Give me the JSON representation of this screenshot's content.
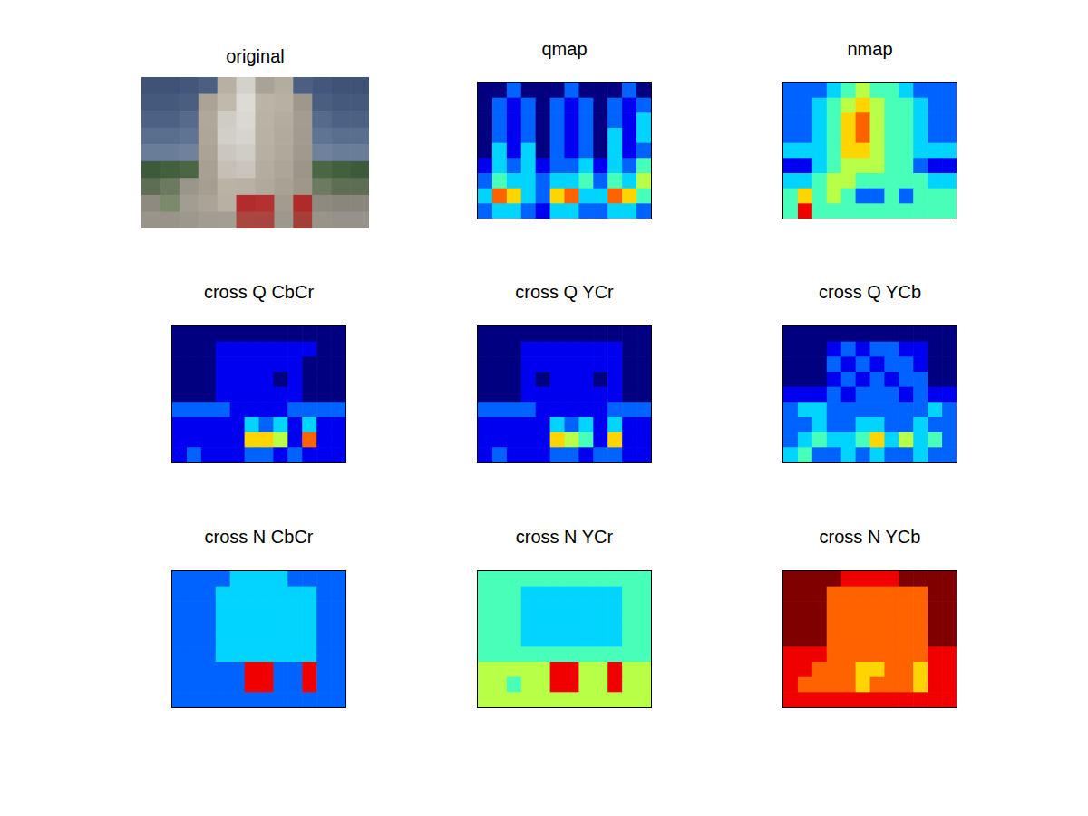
{
  "chart_data": [
    {
      "type": "image",
      "title": "original",
      "colors": [
        [
          "#3e5377",
          "#3e5377",
          "#42577b",
          "#4a5f82",
          "#b8b1a3",
          "#d4d1ca",
          "#a9a397",
          "#b3ad9f",
          "#4a5f82",
          "#42577b",
          "#3e5377",
          "#3e5377"
        ],
        [
          "#45597c",
          "#45597c",
          "#4a5e80",
          "#aba496",
          "#c0baad",
          "#dddbd5",
          "#bab4a6",
          "#b7b1a3",
          "#9e988c",
          "#4a5e80",
          "#45597c",
          "#45597c"
        ],
        [
          "#4d6184",
          "#4d6184",
          "#566a8c",
          "#b0a99b",
          "#cfccc4",
          "#dad8d1",
          "#b9b3a5",
          "#b3ad9f",
          "#a39d91",
          "#566a8c",
          "#4d6184",
          "#4d6184"
        ],
        [
          "#5a6e8f",
          "#5a6e8f",
          "#5f7392",
          "#aea799",
          "#d2cfc7",
          "#d7d4cd",
          "#b8b2a4",
          "#b1ab9d",
          "#a29c90",
          "#5f7392",
          "#5a6e8f",
          "#5a6e8f"
        ],
        [
          "#6a7d98",
          "#6a7d98",
          "#6f819b",
          "#aba496",
          "#cbc7be",
          "#d0cdc5",
          "#b6b0a2",
          "#afa99b",
          "#a09a8e",
          "#6f819b",
          "#6a7d98",
          "#6a7d98"
        ],
        [
          "#3d5a3a",
          "#42603e",
          "#4a6642",
          "#a8a193",
          "#c4c0b6",
          "#c9c5bc",
          "#b3ad9f",
          "#aca698",
          "#9c968a",
          "#4a6642",
          "#42603e",
          "#3d5a3a"
        ],
        [
          "#5e6e55",
          "#6b7a60",
          "#9b968c",
          "#a59f92",
          "#b9b3a6",
          "#b8b2a5",
          "#b0aa9c",
          "#a8a295",
          "#9e988b",
          "#6b7a60",
          "#5e6e55",
          "#5e6e55"
        ],
        [
          "#8f8a80",
          "#7a8a6a",
          "#a29d93",
          "#aaa498",
          "#b7b1a4",
          "#b32b2b",
          "#b53030",
          "#a29c90",
          "#b12a2a",
          "#8f8a80",
          "#8b867c",
          "#8b867c"
        ],
        [
          "#99948a",
          "#99948a",
          "#9d988e",
          "#a29d93",
          "#a39e94",
          "#a8463f",
          "#a9453e",
          "#9e998f",
          "#a24038",
          "#99948a",
          "#96918a",
          "#96918a"
        ]
      ],
      "tick_labels": false
    },
    {
      "type": "heatmap",
      "title": "qmap",
      "color_range": [
        0,
        9
      ],
      "tick_labels": false,
      "cells": [
        [
          0,
          0,
          2,
          0,
          0,
          0,
          2,
          0,
          0,
          0,
          2,
          0
        ],
        [
          0,
          2,
          1,
          2,
          0,
          2,
          1,
          2,
          0,
          2,
          1,
          2
        ],
        [
          0,
          2,
          1,
          2,
          0,
          2,
          1,
          2,
          0,
          2,
          1,
          3
        ],
        [
          0,
          2,
          1,
          2,
          0,
          2,
          1,
          2,
          0,
          3,
          1,
          3
        ],
        [
          0,
          3,
          1,
          3,
          0,
          2,
          1,
          2,
          0,
          3,
          1,
          2
        ],
        [
          1,
          3,
          2,
          3,
          1,
          2,
          2,
          3,
          1,
          3,
          2,
          4
        ],
        [
          2,
          4,
          3,
          3,
          2,
          3,
          3,
          4,
          2,
          4,
          3,
          5
        ],
        [
          3,
          7,
          6,
          3,
          2,
          6,
          7,
          3,
          3,
          7,
          6,
          4
        ],
        [
          2,
          3,
          3,
          2,
          1,
          3,
          3,
          2,
          2,
          3,
          3,
          2
        ]
      ]
    },
    {
      "type": "heatmap",
      "title": "nmap",
      "color_range": [
        0,
        9
      ],
      "tick_labels": false,
      "cells": [
        [
          2,
          2,
          2,
          3,
          4,
          5,
          4,
          4,
          3,
          2,
          2,
          2
        ],
        [
          2,
          2,
          3,
          4,
          5,
          6,
          5,
          4,
          4,
          3,
          2,
          2
        ],
        [
          2,
          2,
          3,
          4,
          6,
          7,
          5,
          4,
          4,
          3,
          2,
          2
        ],
        [
          2,
          2,
          3,
          4,
          6,
          7,
          5,
          4,
          4,
          3,
          2,
          2
        ],
        [
          3,
          3,
          3,
          4,
          6,
          6,
          5,
          4,
          4,
          3,
          3,
          3
        ],
        [
          1,
          1,
          3,
          4,
          5,
          5,
          5,
          4,
          4,
          2,
          1,
          1
        ],
        [
          3,
          3,
          4,
          5,
          5,
          4,
          4,
          4,
          4,
          4,
          3,
          3
        ],
        [
          4,
          6,
          4,
          5,
          4,
          2,
          2,
          4,
          2,
          4,
          4,
          4
        ],
        [
          4,
          8,
          4,
          4,
          4,
          4,
          4,
          4,
          4,
          4,
          4,
          4
        ]
      ]
    },
    {
      "type": "heatmap",
      "title": "cross Q CbCr",
      "color_range": [
        0,
        9
      ],
      "tick_labels": false,
      "cells": [
        [
          0,
          0,
          0,
          0,
          0,
          0,
          0,
          0,
          0,
          0,
          0,
          0
        ],
        [
          0,
          0,
          0,
          1,
          1,
          1,
          1,
          1,
          1,
          1,
          0,
          0
        ],
        [
          0,
          0,
          0,
          1,
          1,
          1,
          1,
          1,
          1,
          0,
          0,
          0
        ],
        [
          0,
          0,
          0,
          1,
          1,
          1,
          1,
          0,
          1,
          0,
          0,
          0
        ],
        [
          0,
          0,
          0,
          1,
          1,
          1,
          1,
          1,
          1,
          0,
          0,
          0
        ],
        [
          2,
          2,
          2,
          2,
          1,
          1,
          1,
          1,
          2,
          2,
          2,
          2
        ],
        [
          1,
          1,
          1,
          1,
          1,
          3,
          2,
          3,
          1,
          3,
          1,
          1
        ],
        [
          1,
          1,
          1,
          1,
          1,
          6,
          6,
          5,
          1,
          7,
          1,
          1
        ],
        [
          1,
          2,
          1,
          1,
          1,
          2,
          2,
          1,
          2,
          1,
          1,
          1
        ]
      ]
    },
    {
      "type": "heatmap",
      "title": "cross Q YCr",
      "color_range": [
        0,
        9
      ],
      "tick_labels": false,
      "cells": [
        [
          0,
          0,
          0,
          0,
          0,
          0,
          0,
          0,
          0,
          0,
          0,
          0
        ],
        [
          0,
          0,
          0,
          1,
          1,
          1,
          1,
          1,
          1,
          1,
          0,
          0
        ],
        [
          0,
          0,
          0,
          1,
          1,
          1,
          1,
          1,
          1,
          1,
          0,
          0
        ],
        [
          0,
          0,
          0,
          1,
          0,
          1,
          1,
          1,
          0,
          1,
          0,
          0
        ],
        [
          0,
          0,
          0,
          1,
          1,
          1,
          1,
          1,
          1,
          1,
          0,
          0
        ],
        [
          2,
          2,
          2,
          2,
          1,
          1,
          1,
          1,
          1,
          2,
          2,
          2
        ],
        [
          1,
          1,
          1,
          1,
          1,
          3,
          2,
          3,
          1,
          3,
          1,
          1
        ],
        [
          1,
          1,
          1,
          1,
          1,
          6,
          5,
          4,
          1,
          6,
          1,
          1
        ],
        [
          1,
          2,
          1,
          1,
          1,
          2,
          2,
          1,
          2,
          2,
          1,
          1
        ]
      ]
    },
    {
      "type": "heatmap",
      "title": "cross Q YCb",
      "color_range": [
        0,
        9
      ],
      "tick_labels": false,
      "cells": [
        [
          0,
          0,
          0,
          0,
          0,
          0,
          0,
          0,
          0,
          0,
          0,
          0
        ],
        [
          0,
          0,
          0,
          1,
          2,
          1,
          2,
          2,
          1,
          1,
          0,
          0
        ],
        [
          0,
          0,
          0,
          2,
          1,
          2,
          1,
          2,
          2,
          1,
          0,
          0
        ],
        [
          0,
          0,
          0,
          1,
          2,
          1,
          2,
          1,
          2,
          2,
          0,
          0
        ],
        [
          1,
          1,
          1,
          2,
          1,
          2,
          2,
          2,
          1,
          2,
          1,
          1
        ],
        [
          2,
          3,
          3,
          2,
          2,
          2,
          2,
          2,
          2,
          2,
          3,
          2
        ],
        [
          2,
          2,
          3,
          2,
          2,
          3,
          3,
          2,
          2,
          3,
          2,
          2
        ],
        [
          2,
          3,
          4,
          3,
          3,
          4,
          6,
          3,
          5,
          3,
          4,
          2
        ],
        [
          3,
          4,
          2,
          2,
          3,
          2,
          3,
          2,
          2,
          3,
          2,
          2
        ]
      ]
    },
    {
      "type": "heatmap",
      "title": "cross N CbCr",
      "color_range": [
        0,
        9
      ],
      "tick_labels": false,
      "cells": [
        [
          2,
          2,
          2,
          2,
          3,
          3,
          3,
          3,
          2,
          2,
          2,
          2
        ],
        [
          2,
          2,
          2,
          3,
          3,
          3,
          3,
          3,
          3,
          3,
          2,
          2
        ],
        [
          2,
          2,
          2,
          3,
          3,
          3,
          3,
          3,
          3,
          3,
          2,
          2
        ],
        [
          2,
          2,
          2,
          3,
          3,
          3,
          3,
          3,
          3,
          3,
          2,
          2
        ],
        [
          2,
          2,
          2,
          3,
          3,
          3,
          3,
          3,
          3,
          3,
          2,
          2
        ],
        [
          2,
          2,
          2,
          3,
          3,
          3,
          3,
          3,
          3,
          3,
          2,
          2
        ],
        [
          2,
          2,
          2,
          2,
          2,
          8,
          8,
          2,
          2,
          8,
          2,
          2
        ],
        [
          2,
          2,
          2,
          2,
          2,
          8,
          8,
          2,
          2,
          8,
          2,
          2
        ],
        [
          2,
          2,
          2,
          2,
          2,
          2,
          2,
          2,
          2,
          2,
          2,
          2
        ]
      ]
    },
    {
      "type": "heatmap",
      "title": "cross N YCr",
      "color_range": [
        0,
        9
      ],
      "tick_labels": false,
      "cells": [
        [
          4,
          4,
          4,
          4,
          4,
          4,
          4,
          4,
          4,
          4,
          4,
          4
        ],
        [
          4,
          4,
          4,
          3,
          3,
          3,
          3,
          3,
          3,
          3,
          4,
          4
        ],
        [
          4,
          4,
          4,
          3,
          3,
          3,
          3,
          3,
          3,
          3,
          4,
          4
        ],
        [
          4,
          4,
          4,
          3,
          3,
          3,
          3,
          3,
          3,
          3,
          4,
          4
        ],
        [
          4,
          4,
          4,
          3,
          3,
          3,
          3,
          3,
          3,
          3,
          4,
          4
        ],
        [
          4,
          4,
          4,
          4,
          4,
          4,
          4,
          4,
          4,
          4,
          4,
          4
        ],
        [
          5,
          5,
          5,
          5,
          5,
          8,
          8,
          5,
          5,
          8,
          5,
          5
        ],
        [
          5,
          5,
          4,
          5,
          5,
          8,
          8,
          5,
          5,
          8,
          5,
          5
        ],
        [
          5,
          5,
          5,
          5,
          5,
          5,
          5,
          5,
          5,
          5,
          5,
          5
        ]
      ]
    },
    {
      "type": "heatmap",
      "title": "cross N YCb",
      "color_range": [
        0,
        9
      ],
      "tick_labels": false,
      "cells": [
        [
          9,
          9,
          9,
          9,
          8,
          8,
          8,
          8,
          9,
          9,
          9,
          9
        ],
        [
          9,
          9,
          9,
          7,
          7,
          7,
          7,
          7,
          7,
          7,
          9,
          9
        ],
        [
          9,
          9,
          9,
          7,
          7,
          7,
          7,
          7,
          7,
          7,
          9,
          9
        ],
        [
          9,
          9,
          9,
          7,
          7,
          7,
          7,
          7,
          7,
          7,
          9,
          9
        ],
        [
          9,
          9,
          9,
          7,
          7,
          7,
          7,
          7,
          7,
          7,
          9,
          9
        ],
        [
          8,
          8,
          8,
          7,
          7,
          7,
          7,
          7,
          7,
          7,
          8,
          8
        ],
        [
          8,
          8,
          7,
          7,
          7,
          6,
          6,
          7,
          7,
          6,
          8,
          8
        ],
        [
          8,
          7,
          7,
          7,
          7,
          6,
          7,
          7,
          7,
          6,
          8,
          8
        ],
        [
          8,
          8,
          8,
          8,
          8,
          8,
          8,
          8,
          8,
          8,
          8,
          8
        ]
      ]
    }
  ]
}
